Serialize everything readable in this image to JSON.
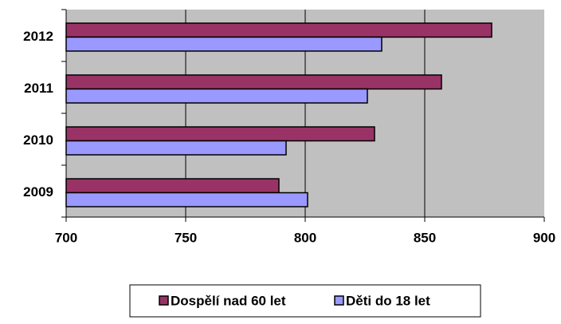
{
  "chart_data": {
    "type": "bar",
    "orientation": "horizontal",
    "categories": [
      "2009",
      "2010",
      "2011",
      "2012"
    ],
    "series": [
      {
        "name": "Dospělí nad 60 let",
        "color": "#993366",
        "values": [
          789,
          829,
          857,
          878
        ]
      },
      {
        "name": "Děti do 18 let",
        "color": "#9999ff",
        "values": [
          801,
          792,
          826,
          832
        ]
      }
    ],
    "xlim": [
      700,
      900
    ],
    "xticks": [
      700,
      750,
      800,
      850,
      900
    ],
    "grid": true,
    "legend": "bottom"
  }
}
